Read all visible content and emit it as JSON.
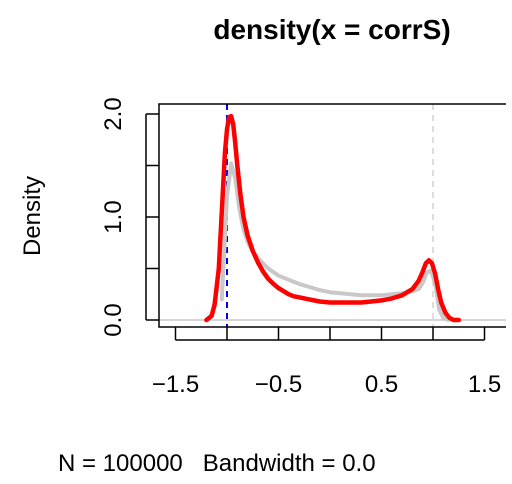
{
  "chart_data": {
    "type": "line",
    "title": "density(x = corrS)",
    "xlabel": "N = 100000   Bandwidth = 0.0",
    "ylabel": "Density",
    "xlim": [
      -1.9,
      1.95
    ],
    "ylim": [
      0,
      2.0
    ],
    "x_ticks": [
      -1.5,
      -1.0,
      -0.5,
      0.0,
      0.5,
      1.0,
      1.5
    ],
    "x_tick_labels": [
      "−1.5",
      "−0.5",
      "0.5",
      "1.5"
    ],
    "x_tick_label_values": [
      -1.5,
      -0.5,
      0.5,
      1.5
    ],
    "y_ticks": [
      0.0,
      0.5,
      1.0,
      1.5,
      2.0
    ],
    "y_tick_labels": [
      "0.0",
      "1.0",
      "2.0"
    ],
    "y_tick_label_values": [
      0.0,
      1.0,
      2.0
    ],
    "grid": false,
    "reference_lines": [
      {
        "axis": "x",
        "value": -1.0,
        "style": "dashed",
        "color": "#0000ee"
      },
      {
        "axis": "x",
        "value": 1.0,
        "style": "dashed",
        "color": "#dddddd"
      },
      {
        "axis": "y",
        "value": 0.0,
        "style": "solid",
        "color": "#c8c8c8"
      }
    ],
    "series": [
      {
        "color": "#c8c8c8",
        "x": [
          -1.05,
          -1.0,
          -0.96,
          -0.92,
          -0.88,
          -0.84,
          -0.8,
          -0.76,
          -0.7,
          -0.6,
          -0.5,
          -0.4,
          -0.3,
          -0.2,
          -0.1,
          0.0,
          0.1,
          0.2,
          0.3,
          0.4,
          0.5,
          0.6,
          0.7,
          0.8,
          0.86,
          0.9,
          0.94,
          0.98,
          1.02,
          1.06,
          1.1,
          1.15
        ],
        "y": [
          0.2,
          1.2,
          1.52,
          1.38,
          1.08,
          0.88,
          0.76,
          0.68,
          0.6,
          0.5,
          0.43,
          0.39,
          0.35,
          0.32,
          0.29,
          0.27,
          0.26,
          0.25,
          0.24,
          0.24,
          0.24,
          0.25,
          0.26,
          0.28,
          0.3,
          0.36,
          0.46,
          0.48,
          0.36,
          0.1,
          0.02,
          0.0
        ]
      },
      {
        "color": "#ff0000",
        "x": [
          -1.2,
          -1.15,
          -1.12,
          -1.08,
          -1.05,
          -1.02,
          -1.0,
          -0.98,
          -0.96,
          -0.94,
          -0.92,
          -0.9,
          -0.87,
          -0.84,
          -0.8,
          -0.75,
          -0.7,
          -0.65,
          -0.6,
          -0.55,
          -0.5,
          -0.45,
          -0.4,
          -0.35,
          -0.3,
          -0.2,
          -0.1,
          0.0,
          0.1,
          0.2,
          0.3,
          0.4,
          0.5,
          0.6,
          0.7,
          0.8,
          0.86,
          0.9,
          0.93,
          0.96,
          0.99,
          1.02,
          1.05,
          1.08,
          1.12,
          1.16,
          1.2,
          1.25
        ],
        "y": [
          0.0,
          0.04,
          0.15,
          0.5,
          1.05,
          1.62,
          1.85,
          1.97,
          1.98,
          1.9,
          1.72,
          1.5,
          1.22,
          1.0,
          0.82,
          0.67,
          0.56,
          0.47,
          0.4,
          0.35,
          0.31,
          0.28,
          0.25,
          0.23,
          0.22,
          0.2,
          0.18,
          0.17,
          0.17,
          0.17,
          0.17,
          0.18,
          0.19,
          0.21,
          0.24,
          0.3,
          0.38,
          0.47,
          0.55,
          0.58,
          0.55,
          0.45,
          0.3,
          0.17,
          0.07,
          0.02,
          0.0,
          0.0
        ]
      }
    ]
  }
}
